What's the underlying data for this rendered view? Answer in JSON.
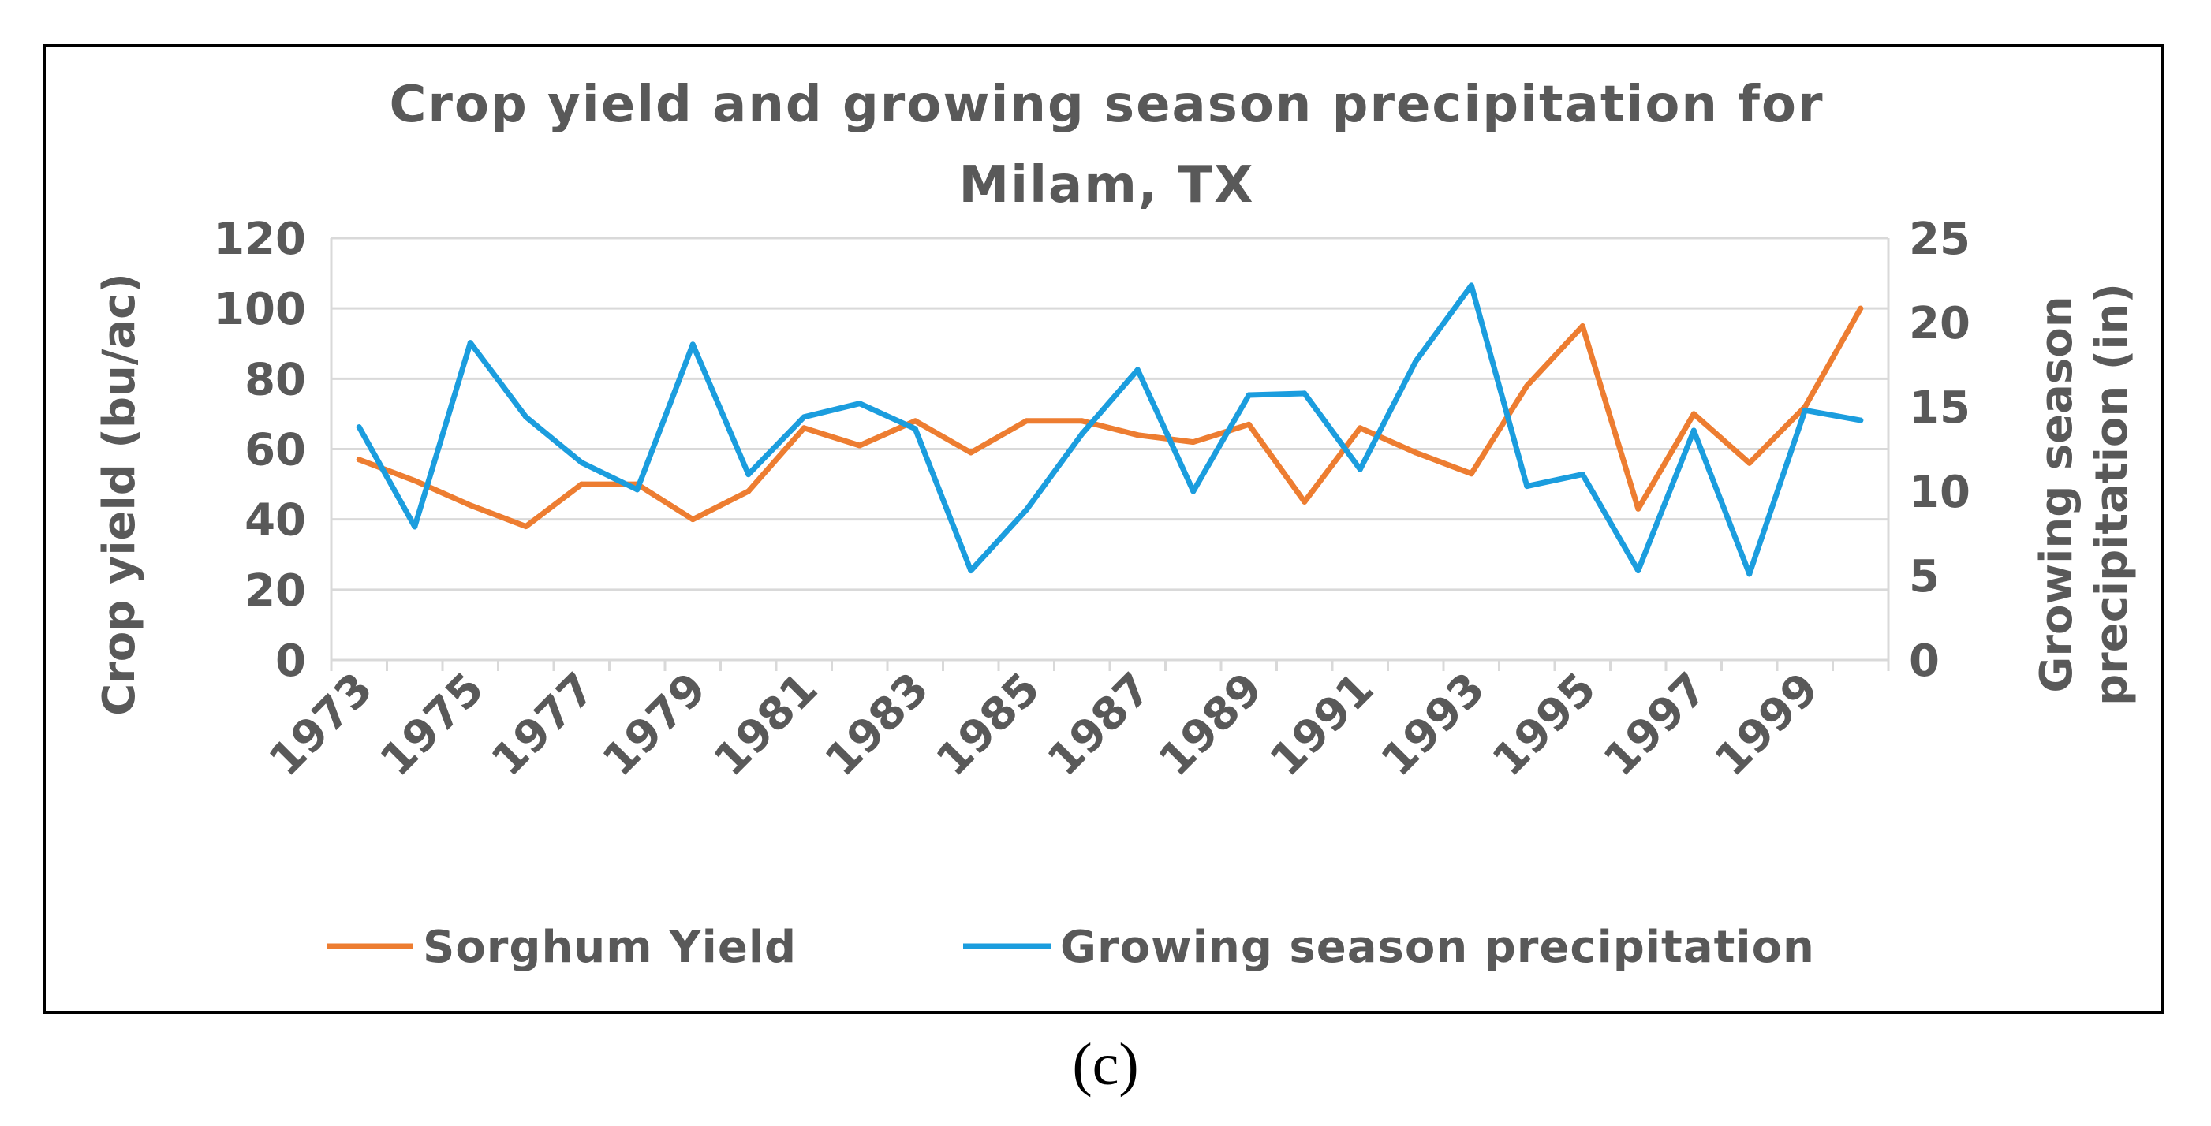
{
  "chart_data": {
    "type": "line",
    "title_line1": "Crop yield and growing season precipitation for",
    "title_line2": "Milam, TX",
    "x": [
      1973,
      1974,
      1975,
      1976,
      1977,
      1978,
      1979,
      1980,
      1981,
      1982,
      1983,
      1984,
      1985,
      1986,
      1987,
      1988,
      1989,
      1990,
      1991,
      1992,
      1993,
      1994,
      1995,
      1996,
      1997,
      1998,
      1999,
      2000
    ],
    "x_tick_labels": [
      "1973",
      "1975",
      "1977",
      "1979",
      "1981",
      "1983",
      "1985",
      "1987",
      "1989",
      "1991",
      "1993",
      "1995",
      "1997",
      "1999"
    ],
    "ylabel_left": "Crop yield (bu/ac)",
    "ylabel_right_line1": "Growing season",
    "ylabel_right_line2": "precipitation (in)",
    "ylim_left": [
      0,
      120
    ],
    "ylim_right": [
      0,
      25
    ],
    "yticks_left": [
      "0",
      "20",
      "40",
      "60",
      "80",
      "100",
      "120"
    ],
    "yticks_right": [
      "0",
      "5",
      "10",
      "15",
      "20",
      "25"
    ],
    "grid": true,
    "legend_position": "bottom",
    "series": [
      {
        "name": "Sorghum Yield",
        "axis": "left",
        "color": "#ED7D31",
        "values": [
          57,
          51,
          44,
          38,
          50,
          50,
          40,
          48,
          66,
          61,
          68,
          59,
          68,
          68,
          64,
          62,
          67,
          45,
          66,
          59,
          53,
          78,
          95,
          43,
          70,
          56,
          72,
          100
        ]
      },
      {
        "name": "Growing season precipitation",
        "axis": "right",
        "color": "#1B9DDE",
        "values": [
          13.8,
          7.9,
          18.8,
          14.4,
          11.7,
          10.1,
          18.7,
          11.0,
          14.4,
          15.2,
          13.7,
          5.3,
          8.9,
          13.4,
          17.2,
          10.0,
          15.7,
          15.8,
          11.3,
          17.7,
          22.2,
          10.3,
          11.0,
          5.3,
          13.6,
          5.1,
          14.8,
          14.2
        ]
      }
    ]
  },
  "caption": "(c)"
}
